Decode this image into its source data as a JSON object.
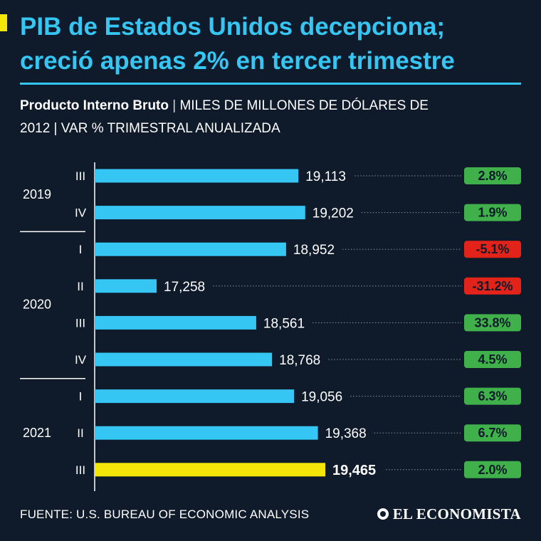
{
  "header": {
    "title_line1": "PIB de Estados Unidos decepciona;",
    "title_line2": "creció apenas 2% en tercer trimestre",
    "subtitle_bold": "Producto Interno Bruto",
    "subtitle_sep": "|",
    "subtitle_rest_a": "MILES DE MILLONES DE DÓLARES DE",
    "subtitle_rest_b": "2012 | VAR % TRIMESTRAL ANUALIZADA"
  },
  "colors": {
    "background": "#0f1a2a",
    "bar": "#35c6f4",
    "bar_highlight": "#f5e60a",
    "badge_positive": "#3fb04a",
    "badge_negative": "#e2231a",
    "title": "#35c6f4"
  },
  "chart_data": {
    "type": "bar",
    "orientation": "horizontal",
    "title": "Producto Interno Bruto",
    "xlabel": "",
    "ylabel": "",
    "xlim": [
      17000,
      19600
    ],
    "groups": [
      {
        "year": "2019",
        "quarters": [
          "III",
          "IV"
        ]
      },
      {
        "year": "2020",
        "quarters": [
          "I",
          "II",
          "III",
          "IV"
        ]
      },
      {
        "year": "2021",
        "quarters": [
          "I",
          "II",
          "III"
        ]
      }
    ],
    "categories": [
      "2019 III",
      "2019 IV",
      "2020 I",
      "2020 II",
      "2020 III",
      "2020 IV",
      "2021 I",
      "2021 II",
      "2021 III"
    ],
    "quarter_labels": [
      "III",
      "IV",
      "I",
      "II",
      "III",
      "IV",
      "I",
      "II",
      "III"
    ],
    "values": [
      19113,
      19202,
      18952,
      17258,
      18561,
      18768,
      19056,
      19368,
      19465
    ],
    "value_labels": [
      "19,113",
      "19,202",
      "18,952",
      "17,258",
      "18,561",
      "18,768",
      "19,056",
      "19,368",
      "19,465"
    ],
    "change_pct": [
      2.8,
      1.9,
      -5.1,
      -31.2,
      33.8,
      4.5,
      6.3,
      6.7,
      2.0
    ],
    "change_labels": [
      "2.8%",
      "1.9%",
      "-5.1%",
      "-31.2%",
      "33.8%",
      "4.5%",
      "6.3%",
      "6.7%",
      "2.0%"
    ],
    "highlight_index": 8
  },
  "footer": {
    "source": "FUENTE: U.S. BUREAU OF ECONOMIC ANALYSIS",
    "logo": "EL ECONOMISTA",
    "logo_icon": "el-economista-circle-icon"
  }
}
